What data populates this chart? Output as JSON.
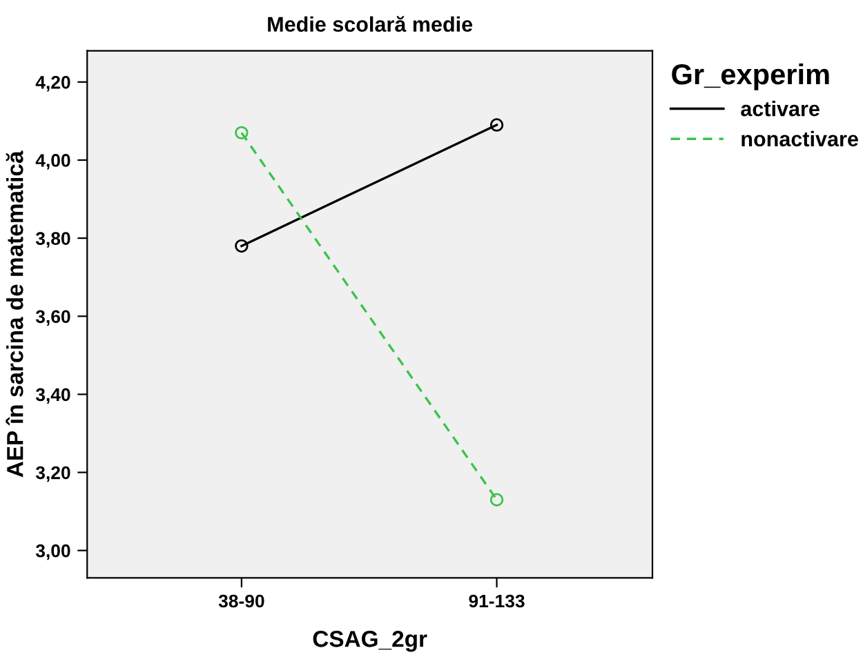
{
  "chart_data": {
    "type": "line",
    "title": "Medie scolară medie",
    "xlabel": "CSAG_2gr",
    "ylabel": "AEP în sarcina de matematică",
    "legend_title": "Gr_experim",
    "categories": [
      "38-90",
      "91-133"
    ],
    "series": [
      {
        "name": "activare",
        "color": "#000000",
        "values": [
          3.78,
          4.09
        ],
        "line_style": "solid"
      },
      {
        "name": "nonactivare",
        "color": "#3cc34b",
        "values": [
          4.07,
          3.13
        ],
        "line_style": "dashed"
      }
    ],
    "ylim": [
      2.93,
      4.28
    ],
    "yticks": [
      {
        "value": 3.0,
        "label": "3,00"
      },
      {
        "value": 3.2,
        "label": "3,20"
      },
      {
        "value": 3.4,
        "label": "3,40"
      },
      {
        "value": 3.6,
        "label": "3,60"
      },
      {
        "value": 3.8,
        "label": "3,80"
      },
      {
        "value": 4.0,
        "label": "4,00"
      },
      {
        "value": 4.2,
        "label": "4,20"
      }
    ],
    "marker": "circle",
    "grid": false,
    "legend": "top right"
  }
}
